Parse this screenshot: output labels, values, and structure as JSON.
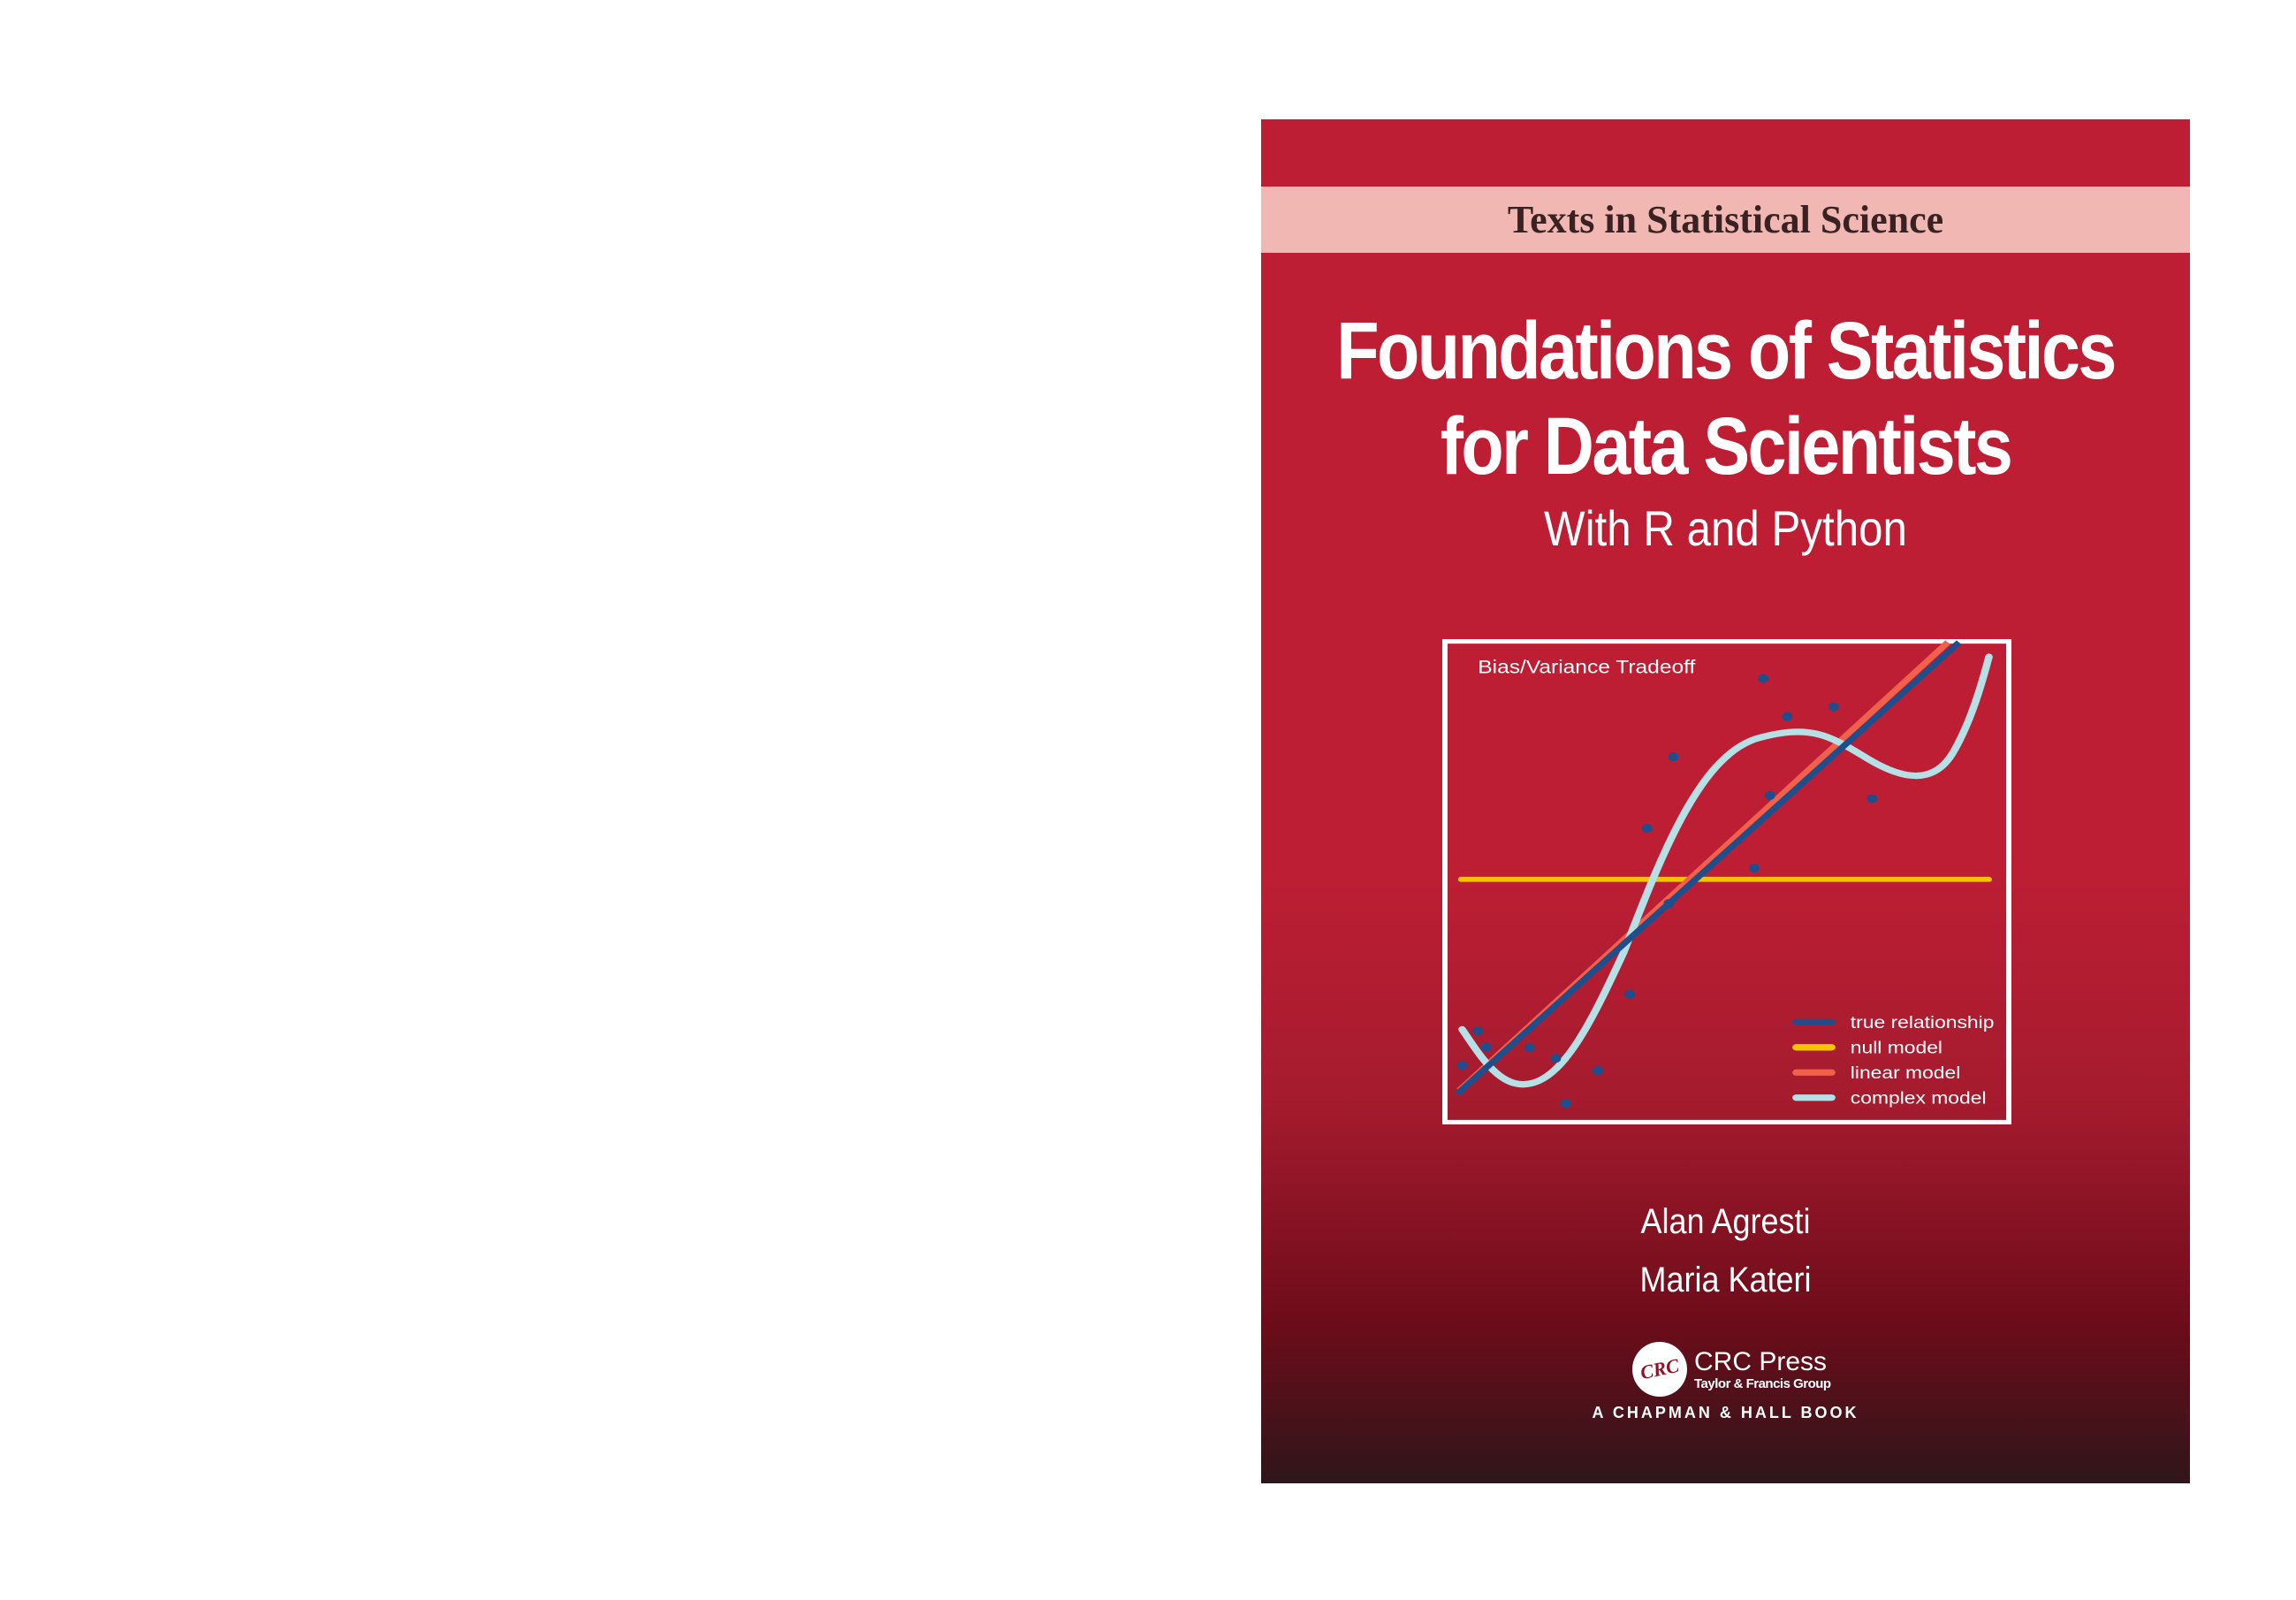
{
  "series_band": "Texts in Statistical Science",
  "title_line1": "Foundations of Statistics",
  "title_line2": "for Data Scientists",
  "subtitle": "With R and Python",
  "illustration": {
    "title": "Bias/Variance Tradeoff",
    "legend": [
      {
        "label": "true relationship",
        "color": "#1f4e8c"
      },
      {
        "label": "null model",
        "color": "#f5c400"
      },
      {
        "label": "linear model",
        "color": "#f0604a"
      },
      {
        "label": "complex model",
        "color": "#b5e0e6"
      }
    ],
    "point_color": "#1f4e8c"
  },
  "authors": [
    "Alan Agresti",
    "Maria Kateri"
  ],
  "publisher": {
    "logo_text": "CRC",
    "name": "CRC Press",
    "group": "Taylor & Francis Group",
    "imprint": "A CHAPMAN & HALL BOOK"
  },
  "colors": {
    "cover_red": "#be1e34",
    "band": "#f0b7b3"
  }
}
